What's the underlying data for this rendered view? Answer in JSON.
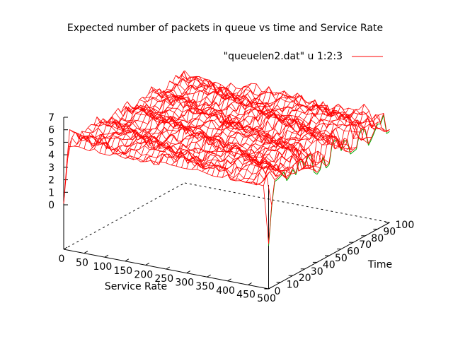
{
  "chart_data": {
    "type": "surface",
    "title": "Expected number of packets in queue vs time and Service Rate",
    "xlabel": "Service Rate",
    "ylabel": "Time",
    "zlabel": "",
    "xlim": [
      0,
      500
    ],
    "ylim": [
      0,
      100
    ],
    "zlim": [
      0,
      7
    ],
    "x_ticks": [
      "0",
      "50",
      "100",
      "150",
      "200",
      "250",
      "300",
      "350",
      "400",
      "450",
      "500"
    ],
    "y_ticks": [
      "0",
      "10",
      "20",
      "30",
      "40",
      "50",
      "60",
      "70",
      "80",
      "90",
      "100"
    ],
    "z_ticks": [
      "0",
      "1",
      "2",
      "3",
      "4",
      "5",
      "6",
      "7"
    ],
    "legend": {
      "label": "\"queuelen2.dat\" u 1:2:3",
      "position": "top-right"
    },
    "surface_description": {
      "plateau_level": 5.0,
      "plateau_range": [
        4.4,
        5.8
      ],
      "rise_at_low_time": "steep rise from 0 to ~4.8 near time 0",
      "dip_at_time0_high_rate": "sharp dip to ~0 at time 0, service rate ~500",
      "periodic_dips_along_time_at_high_rate": [
        40,
        48,
        70,
        83,
        98
      ]
    },
    "colors": {
      "mesh_top": "#ff0000",
      "mesh_bottom": "#00aa00",
      "axes": "#000000"
    }
  }
}
